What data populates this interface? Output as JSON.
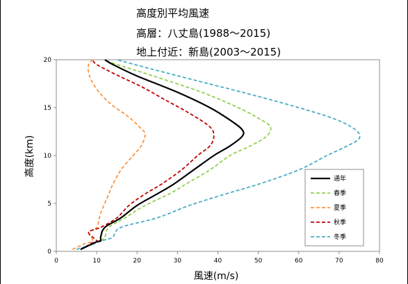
{
  "chart_data": {
    "type": "line",
    "title_lines": [
      "高度別平均風速",
      "高層：八丈島(1988～2015)",
      "地上付近：新島(2003～2015)"
    ],
    "xlabel": "風速(m/s)",
    "ylabel": "高度(km)",
    "xlim": [
      0,
      80
    ],
    "ylim": [
      0,
      20
    ],
    "xticks": [
      0,
      10,
      20,
      30,
      40,
      50,
      60,
      70,
      80
    ],
    "yticks": [
      0,
      5,
      10,
      15,
      20
    ],
    "grid": false,
    "legend_position": "bottom-right",
    "series": [
      {
        "name": "通年",
        "color": "#000000",
        "dash": "solid",
        "points": [
          [
            6,
            0.2
          ],
          [
            10,
            1.0
          ],
          [
            11,
            1.1
          ],
          [
            11,
            1.5
          ],
          [
            12,
            2.5
          ],
          [
            16,
            3.5
          ],
          [
            20,
            4.8
          ],
          [
            25,
            6.0
          ],
          [
            29,
            7.0
          ],
          [
            34,
            8.5
          ],
          [
            39,
            10.0
          ],
          [
            43,
            11.0
          ],
          [
            46,
            12.0
          ],
          [
            46,
            12.7
          ],
          [
            43,
            13.7
          ],
          [
            38,
            15.0
          ],
          [
            30,
            16.6
          ],
          [
            20,
            18.3
          ],
          [
            14,
            19.5
          ],
          [
            12,
            20
          ]
        ]
      },
      {
        "name": "春季",
        "color": "#92d050",
        "dash": "dashed",
        "points": [
          [
            6,
            0.2
          ],
          [
            10,
            1.0
          ],
          [
            11,
            1.1
          ],
          [
            12,
            1.5
          ],
          [
            13,
            2.5
          ],
          [
            17,
            3.5
          ],
          [
            22,
            4.8
          ],
          [
            28,
            6.0
          ],
          [
            32,
            7.0
          ],
          [
            38,
            8.5
          ],
          [
            43,
            10.0
          ],
          [
            48,
            11.0
          ],
          [
            52,
            12.0
          ],
          [
            53,
            13.0
          ],
          [
            50,
            13.9
          ],
          [
            45,
            15.0
          ],
          [
            36,
            16.6
          ],
          [
            24,
            18.3
          ],
          [
            15,
            19.5
          ],
          [
            12,
            20
          ]
        ]
      },
      {
        "name": "夏季",
        "color": "#f79646",
        "dash": "dashed",
        "points": [
          [
            4,
            0.2
          ],
          [
            7,
            0.8
          ],
          [
            9,
            1.1
          ],
          [
            8,
            2.0
          ],
          [
            10,
            2.5
          ],
          [
            11,
            4.0
          ],
          [
            13,
            6.0
          ],
          [
            14,
            7.0
          ],
          [
            16,
            8.5
          ],
          [
            19,
            10.0
          ],
          [
            21,
            11.0
          ],
          [
            22,
            12.2
          ],
          [
            21,
            12.8
          ],
          [
            18,
            14.0
          ],
          [
            14,
            15.2
          ],
          [
            11,
            16.4
          ],
          [
            9,
            17.6
          ],
          [
            8,
            18.6
          ],
          [
            8,
            19.5
          ],
          [
            9,
            20
          ]
        ]
      },
      {
        "name": "秋季",
        "color": "#c00000",
        "dash": "dashed",
        "points": [
          [
            6,
            0.2
          ],
          [
            9,
            0.9
          ],
          [
            10,
            1.1
          ],
          [
            8,
            2.0
          ],
          [
            11,
            2.5
          ],
          [
            15,
            3.5
          ],
          [
            18,
            4.8
          ],
          [
            22,
            6.0
          ],
          [
            26,
            7.0
          ],
          [
            31,
            8.5
          ],
          [
            35,
            10.0
          ],
          [
            38,
            11.0
          ],
          [
            39,
            12.0
          ],
          [
            38,
            13.0
          ],
          [
            33,
            14.4
          ],
          [
            27,
            15.8
          ],
          [
            21,
            17.2
          ],
          [
            15,
            18.4
          ],
          [
            10,
            19.5
          ],
          [
            9,
            20
          ]
        ]
      },
      {
        "name": "冬季",
        "color": "#4bacc6",
        "dash": "dashed",
        "points": [
          [
            5,
            0.2
          ],
          [
            10,
            0.9
          ],
          [
            12,
            1.2
          ],
          [
            14,
            1.5
          ],
          [
            16,
            2.5
          ],
          [
            25,
            3.5
          ],
          [
            33,
            4.8
          ],
          [
            42,
            6.0
          ],
          [
            50,
            7.0
          ],
          [
            60,
            8.5
          ],
          [
            67,
            10.0
          ],
          [
            72,
            11.0
          ],
          [
            75,
            11.8
          ],
          [
            74,
            12.7
          ],
          [
            69,
            13.8
          ],
          [
            60,
            15.0
          ],
          [
            47,
            16.5
          ],
          [
            33,
            18.0
          ],
          [
            22,
            19.2
          ],
          [
            15,
            20
          ]
        ]
      }
    ]
  }
}
